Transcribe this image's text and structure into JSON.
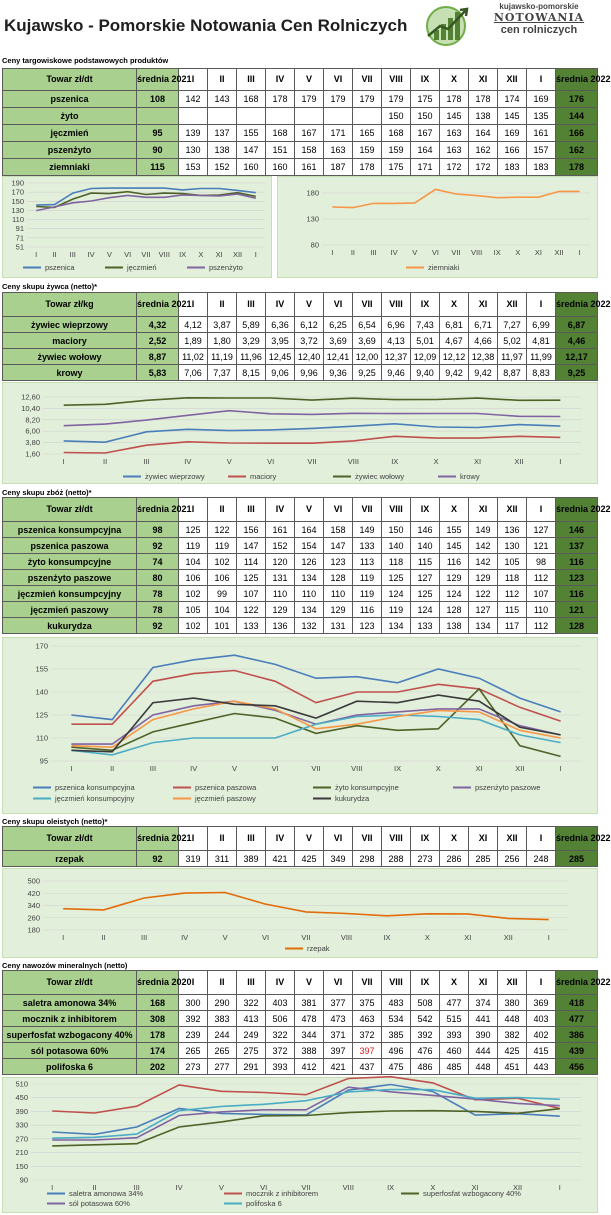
{
  "header": {
    "title": "Kujawsko - Pomorskie Notowania Cen Rolniczych",
    "logo_line1": "kujawsko-pomorskie",
    "logo_line2": "NOTOWANIA",
    "logo_line3": "cen rolniczych"
  },
  "months": [
    "I",
    "II",
    "III",
    "IV",
    "V",
    "VI",
    "VII",
    "VIII",
    "IX",
    "X",
    "XI",
    "XII",
    "I"
  ],
  "market": {
    "title": "Ceny targowiskowe podstawowych produktów",
    "head_name": "Towar zł/dt",
    "head_avg_old": "średnia 2021",
    "head_avg_new": "średnia 2022",
    "rows": [
      {
        "name": "pszenica",
        "avg_old": "108",
        "vals": [
          "142",
          "143",
          "168",
          "178",
          "179",
          "179",
          "179",
          "179",
          "175",
          "178",
          "178",
          "174",
          "169"
        ],
        "avg_new": "176"
      },
      {
        "name": "żyto",
        "avg_old": "",
        "vals": [
          "",
          "",
          "",
          "",
          "",
          "",
          "",
          "150",
          "150",
          "145",
          "138",
          "145",
          "135"
        ],
        "avg_new": "144"
      },
      {
        "name": "jęczmień",
        "avg_old": "95",
        "vals": [
          "139",
          "137",
          "155",
          "168",
          "167",
          "171",
          "165",
          "168",
          "167",
          "163",
          "164",
          "169",
          "161"
        ],
        "avg_new": "166"
      },
      {
        "name": "pszenżyto",
        "avg_old": "90",
        "vals": [
          "130",
          "138",
          "147",
          "151",
          "158",
          "163",
          "159",
          "159",
          "164",
          "163",
          "162",
          "166",
          "157"
        ],
        "avg_new": "162"
      },
      {
        "name": "ziemniaki",
        "avg_old": "115",
        "vals": [
          "153",
          "152",
          "160",
          "160",
          "161",
          "187",
          "178",
          "175",
          "171",
          "172",
          "172",
          "183",
          "183"
        ],
        "avg_new": "178"
      }
    ]
  },
  "livestock": {
    "title": "Ceny skupu żywca (netto)*",
    "head_name": "Towar zł/kg",
    "head_avg_old": "średnia 2021",
    "head_avg_new": "średnia 2022",
    "rows": [
      {
        "name": "żywiec wieprzowy",
        "avg_old": "4,32",
        "vals": [
          "4,12",
          "3,87",
          "5,89",
          "6,36",
          "6,12",
          "6,25",
          "6,54",
          "6,96",
          "7,43",
          "6,81",
          "6,71",
          "7,27",
          "6,99"
        ],
        "avg_new": "6,87"
      },
      {
        "name": "maciory",
        "avg_old": "2,52",
        "vals": [
          "1,89",
          "1,80",
          "3,29",
          "3,95",
          "3,72",
          "3,69",
          "3,69",
          "4,13",
          "5,01",
          "4,67",
          "4,66",
          "5,02",
          "4,81"
        ],
        "avg_new": "4,46"
      },
      {
        "name": "żywiec wołowy",
        "avg_old": "8,87",
        "vals": [
          "11,02",
          "11,19",
          "11,96",
          "12,45",
          "12,40",
          "12,41",
          "12,00",
          "12,37",
          "12,09",
          "12,12",
          "12,38",
          "11,97",
          "11,99"
        ],
        "avg_new": "12,17"
      },
      {
        "name": "krowy",
        "avg_old": "5,83",
        "vals": [
          "7,06",
          "7,37",
          "8,15",
          "9,06",
          "9,96",
          "9,36",
          "9,25",
          "9,46",
          "9,40",
          "9,42",
          "9,42",
          "8,87",
          "8,83"
        ],
        "avg_new": "9,25"
      }
    ]
  },
  "grain": {
    "title": "Ceny skupu zbóż (netto)*",
    "head_name": "Towar zł/dt",
    "head_avg_old": "średnia 2021",
    "head_avg_new": "średnia 2022",
    "rows": [
      {
        "name": "pszenica konsumpcyjna",
        "avg_old": "98",
        "vals": [
          "125",
          "122",
          "156",
          "161",
          "164",
          "158",
          "149",
          "150",
          "146",
          "155",
          "149",
          "136",
          "127"
        ],
        "avg_new": "146"
      },
      {
        "name": "pszenica paszowa",
        "avg_old": "92",
        "vals": [
          "119",
          "119",
          "147",
          "152",
          "154",
          "147",
          "133",
          "140",
          "140",
          "145",
          "142",
          "130",
          "121"
        ],
        "avg_new": "137"
      },
      {
        "name": "żyto konsumpcyjne",
        "avg_old": "74",
        "vals": [
          "104",
          "102",
          "114",
          "120",
          "126",
          "123",
          "113",
          "118",
          "115",
          "116",
          "142",
          "105",
          "98"
        ],
        "avg_new": "116"
      },
      {
        "name": "pszenżyto paszowe",
        "avg_old": "80",
        "vals": [
          "106",
          "106",
          "125",
          "131",
          "134",
          "128",
          "119",
          "125",
          "127",
          "129",
          "129",
          "118",
          "112"
        ],
        "avg_new": "123"
      },
      {
        "name": "jęczmień konsumpcyjny",
        "avg_old": "78",
        "vals": [
          "102",
          "99",
          "107",
          "110",
          "110",
          "110",
          "119",
          "124",
          "125",
          "124",
          "122",
          "112",
          "107"
        ],
        "avg_new": "116"
      },
      {
        "name": "jęczmień paszowy",
        "avg_old": "78",
        "vals": [
          "105",
          "104",
          "122",
          "129",
          "134",
          "129",
          "116",
          "119",
          "124",
          "128",
          "127",
          "115",
          "110"
        ],
        "avg_new": "121"
      },
      {
        "name": "kukurydza",
        "avg_old": "92",
        "vals": [
          "102",
          "101",
          "133",
          "136",
          "132",
          "131",
          "123",
          "134",
          "133",
          "138",
          "134",
          "117",
          "112"
        ],
        "avg_new": "128"
      }
    ]
  },
  "oilseed": {
    "title": "Ceny skupu oleistych (netto)*",
    "head_name": "Towar zł/dt",
    "head_avg_old": "średnia 2021",
    "head_avg_new": "średnia 2022",
    "rows": [
      {
        "name": "rzepak",
        "avg_old": "92",
        "vals": [
          "319",
          "311",
          "389",
          "421",
          "425",
          "349",
          "298",
          "288",
          "273",
          "286",
          "285",
          "256",
          "248"
        ],
        "avg_new": "285"
      }
    ]
  },
  "fertilizer": {
    "title": "Ceny nawozów mineralnych (netto)",
    "head_name": "Towar zł/dt",
    "head_avg_old": "średnia 2020",
    "head_avg_new": "średnia 2022",
    "rows": [
      {
        "name": "saletra amonowa 34%",
        "avg_old": "168",
        "vals": [
          "300",
          "290",
          "322",
          "403",
          "381",
          "377",
          "375",
          "483",
          "508",
          "477",
          "374",
          "380",
          "369"
        ],
        "avg_new": "418"
      },
      {
        "name": "mocznik z inhibitorem",
        "avg_old": "308",
        "vals": [
          "392",
          "383",
          "413",
          "506",
          "478",
          "473",
          "463",
          "534",
          "542",
          "515",
          "441",
          "448",
          "403"
        ],
        "avg_new": "477"
      },
      {
        "name": "superfosfat wzbogacony 40%",
        "avg_old": "178",
        "vals": [
          "239",
          "244",
          "249",
          "322",
          "344",
          "371",
          "372",
          "385",
          "392",
          "393",
          "390",
          "382",
          "402"
        ],
        "avg_new": "386"
      },
      {
        "name": "sól potasowa 60%",
        "avg_old": "174",
        "vals": [
          "265",
          "265",
          "275",
          "372",
          "388",
          "397",
          "397",
          "496",
          "476",
          "460",
          "444",
          "425",
          "415"
        ],
        "avg_new": "439"
      },
      {
        "name": "polifoska 6",
        "avg_old": "202",
        "vals": [
          "273",
          "277",
          "291",
          "393",
          "412",
          "421",
          "437",
          "475",
          "486",
          "485",
          "448",
          "451",
          "443"
        ],
        "avg_new": "456"
      }
    ]
  },
  "chart_data": [
    {
      "type": "line",
      "id": "market-grain",
      "categories": [
        "I",
        "II",
        "III",
        "IV",
        "V",
        "VI",
        "VII",
        "VIII",
        "IX",
        "X",
        "XI",
        "XII",
        "I"
      ],
      "yticks": [
        "190",
        "170",
        "150",
        "130",
        "110",
        "91",
        "71",
        "51"
      ],
      "ylim": [
        51,
        190
      ],
      "series": [
        {
          "name": "pszenica",
          "color": "#4a7ebb",
          "values": [
            142,
            143,
            168,
            178,
            179,
            179,
            179,
            179,
            175,
            178,
            178,
            174,
            169
          ]
        },
        {
          "name": "jęczmień",
          "color": "#4f6228",
          "values": [
            139,
            137,
            155,
            168,
            167,
            171,
            165,
            168,
            167,
            163,
            164,
            169,
            161
          ]
        },
        {
          "name": "pszenżyto",
          "color": "#8064a2",
          "values": [
            130,
            138,
            147,
            151,
            158,
            163,
            159,
            159,
            164,
            163,
            162,
            166,
            157
          ]
        }
      ]
    },
    {
      "type": "line",
      "id": "market-potato",
      "categories": [
        "I",
        "II",
        "III",
        "IV",
        "V",
        "VI",
        "VII",
        "VIII",
        "IX",
        "X",
        "XI",
        "XII",
        "I"
      ],
      "yticks": [
        "180",
        "130",
        "80"
      ],
      "ylim": [
        80,
        180
      ],
      "series": [
        {
          "name": "ziemniaki",
          "color": "#f79646",
          "values": [
            153,
            152,
            160,
            160,
            161,
            187,
            178,
            175,
            171,
            172,
            172,
            183,
            183
          ]
        }
      ]
    },
    {
      "type": "line",
      "id": "livestock",
      "categories": [
        "I",
        "II",
        "III",
        "IV",
        "V",
        "VI",
        "VII",
        "VIII",
        "IX",
        "X",
        "XI",
        "XII",
        "I"
      ],
      "yticks": [
        "12,60",
        "10,40",
        "8,20",
        "6,00",
        "3,80",
        "1,60"
      ],
      "ylim": [
        1.6,
        12.6
      ],
      "series": [
        {
          "name": "żywiec wieprzowy",
          "color": "#4a7ebb",
          "values": [
            4.12,
            3.87,
            5.89,
            6.36,
            6.12,
            6.25,
            6.54,
            6.96,
            7.43,
            6.81,
            6.71,
            7.27,
            6.99
          ]
        },
        {
          "name": "maciory",
          "color": "#c0504d",
          "values": [
            1.89,
            1.8,
            3.29,
            3.95,
            3.72,
            3.69,
            3.69,
            4.13,
            5.01,
            4.67,
            4.66,
            5.02,
            4.81
          ]
        },
        {
          "name": "żywiec wołowy",
          "color": "#4f6228",
          "values": [
            11.02,
            11.19,
            11.96,
            12.45,
            12.4,
            12.41,
            12.0,
            12.37,
            12.09,
            12.12,
            12.38,
            11.97,
            11.99
          ]
        },
        {
          "name": "krowy",
          "color": "#8064a2",
          "values": [
            7.06,
            7.37,
            8.15,
            9.06,
            9.96,
            9.36,
            9.25,
            9.46,
            9.4,
            9.42,
            9.42,
            8.87,
            8.83
          ]
        }
      ]
    },
    {
      "type": "line",
      "id": "grain",
      "categories": [
        "I",
        "II",
        "III",
        "IV",
        "V",
        "VI",
        "VII",
        "VIII",
        "IX",
        "X",
        "XI",
        "XII",
        "I"
      ],
      "yticks": [
        "170",
        "155",
        "140",
        "125",
        "110",
        "95"
      ],
      "ylim": [
        95,
        170
      ],
      "series": [
        {
          "name": "pszenica konsumpcyjna",
          "color": "#4a7ebb",
          "values": [
            125,
            122,
            156,
            161,
            164,
            158,
            149,
            150,
            146,
            155,
            149,
            136,
            127
          ]
        },
        {
          "name": "pszenica paszowa",
          "color": "#c0504d",
          "values": [
            119,
            119,
            147,
            152,
            154,
            147,
            133,
            140,
            140,
            145,
            142,
            130,
            121
          ]
        },
        {
          "name": "żyto konsumpcyjne",
          "color": "#4f6228",
          "values": [
            104,
            102,
            114,
            120,
            126,
            123,
            113,
            118,
            115,
            116,
            142,
            105,
            98
          ]
        },
        {
          "name": "pszenżyto paszowe",
          "color": "#8064a2",
          "values": [
            106,
            106,
            125,
            131,
            134,
            128,
            119,
            125,
            127,
            129,
            129,
            118,
            112
          ]
        },
        {
          "name": "jęczmień konsumpcyjny",
          "color": "#4bacc6",
          "values": [
            102,
            99,
            107,
            110,
            110,
            110,
            119,
            124,
            125,
            124,
            122,
            112,
            107
          ]
        },
        {
          "name": "jęczmień paszowy",
          "color": "#f79646",
          "values": [
            105,
            104,
            122,
            129,
            134,
            129,
            116,
            119,
            124,
            128,
            127,
            115,
            110
          ]
        },
        {
          "name": "kukurydza",
          "color": "#3a3a3a",
          "values": [
            102,
            101,
            133,
            136,
            132,
            131,
            123,
            134,
            133,
            138,
            134,
            117,
            112
          ]
        }
      ]
    },
    {
      "type": "line",
      "id": "oilseed",
      "categories": [
        "I",
        "II",
        "III",
        "IV",
        "V",
        "VI",
        "VII",
        "VIII",
        "IX",
        "X",
        "XI",
        "XII",
        "I"
      ],
      "yticks": [
        "500",
        "420",
        "340",
        "260",
        "180"
      ],
      "ylim": [
        180,
        500
      ],
      "series": [
        {
          "name": "rzepak",
          "color": "#e36c09",
          "values": [
            319,
            311,
            389,
            421,
            425,
            349,
            298,
            288,
            273,
            286,
            285,
            256,
            248
          ]
        }
      ]
    },
    {
      "type": "line",
      "id": "fertilizer",
      "categories": [
        "I",
        "II",
        "III",
        "IV",
        "V",
        "VI",
        "VII",
        "VIII",
        "IX",
        "X",
        "XI",
        "XII",
        "I"
      ],
      "yticks": [
        "510",
        "450",
        "390",
        "330",
        "270",
        "210",
        "150",
        "90"
      ],
      "ylim": [
        90,
        510
      ],
      "series": [
        {
          "name": "saletra amonowa 34%",
          "color": "#4a7ebb",
          "values": [
            300,
            290,
            322,
            403,
            381,
            377,
            375,
            483,
            508,
            477,
            374,
            380,
            369
          ]
        },
        {
          "name": "mocznik z inhibitorem",
          "color": "#c0504d",
          "values": [
            392,
            383,
            413,
            506,
            478,
            473,
            463,
            534,
            542,
            515,
            441,
            448,
            403
          ]
        },
        {
          "name": "superfosfat wzbogacony 40%",
          "color": "#4f6228",
          "values": [
            239,
            244,
            249,
            322,
            344,
            371,
            372,
            385,
            392,
            393,
            390,
            382,
            402
          ]
        },
        {
          "name": "sól potasowa 60%",
          "color": "#8064a2",
          "values": [
            265,
            265,
            275,
            372,
            388,
            397,
            397,
            496,
            476,
            460,
            444,
            425,
            415
          ]
        },
        {
          "name": "polifoska 6",
          "color": "#4bacc6",
          "values": [
            273,
            277,
            291,
            393,
            412,
            421,
            437,
            475,
            486,
            485,
            448,
            451,
            443
          ]
        }
      ]
    }
  ]
}
